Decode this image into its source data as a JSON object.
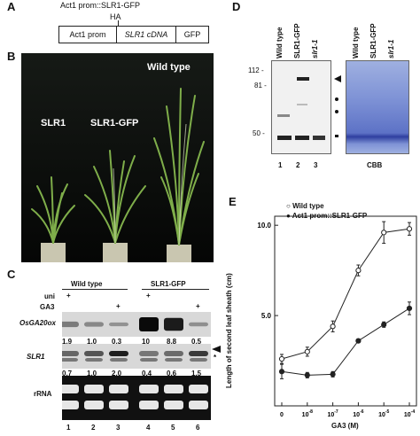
{
  "panel_a": {
    "label": "A",
    "construct_title": "Act1 prom::SLR1-GFP",
    "tag": "HA",
    "segments": [
      "Act1 prom",
      "SLR1 cDNA",
      "GFP"
    ]
  },
  "panel_b": {
    "label": "B",
    "plants": [
      "SLR1",
      "SLR1-GFP",
      "Wild type"
    ]
  },
  "panel_c": {
    "label": "C",
    "group_headers": [
      "Wild type",
      "SLR1-GFP"
    ],
    "row_labels": [
      "uni",
      "GA3"
    ],
    "uni_marks": [
      "+",
      "",
      "",
      "+",
      "",
      ""
    ],
    "ga_marks": [
      "",
      "",
      "+",
      "",
      "",
      "+"
    ],
    "gene1": "OsGA20ox",
    "gene1_values": [
      "1.9",
      "1.0",
      "0.3",
      "10",
      "8.8",
      "0.5"
    ],
    "gene2": "SLR1",
    "gene2_values": [
      "0.7",
      "1.0",
      "2.0",
      "0.4",
      "0.6",
      "1.5"
    ],
    "star": "*",
    "rrna": "rRNA",
    "lanes": [
      "1",
      "2",
      "3",
      "4",
      "5",
      "6"
    ]
  },
  "panel_d": {
    "label": "D",
    "lanes": [
      "Wild type",
      "SLR1-GFP",
      "slr1-1"
    ],
    "markers": [
      "112 -",
      "81 -",
      "50 -"
    ],
    "lane_numbers": [
      "1",
      "2",
      "3"
    ],
    "cbb": "CBB"
  },
  "panel_e": {
    "label": "E",
    "legend": [
      "Wild type",
      "Act1 prom::SLR1-GFP"
    ]
  },
  "chart_data": {
    "type": "line",
    "title": "",
    "xlabel": "GA3 (M)",
    "ylabel": "Length of second leaf sheath (cm)",
    "categories": [
      "0",
      "10-8",
      "10-7",
      "10-6",
      "10-5",
      "10-4"
    ],
    "ylim": [
      0,
      10.5
    ],
    "yticks": [
      "5.0",
      "10.0"
    ],
    "series": [
      {
        "name": "Wild type",
        "marker": "open-circle",
        "values": [
          2.6,
          3.0,
          4.4,
          7.5,
          9.6,
          9.8
        ],
        "errors": [
          0.25,
          0.25,
          0.3,
          0.3,
          0.6,
          0.35
        ]
      },
      {
        "name": "Act1 prom::SLR1-GFP",
        "marker": "filled-circle",
        "values": [
          1.9,
          1.7,
          1.75,
          3.6,
          4.5,
          5.4
        ],
        "errors": [
          0.4,
          0.15,
          0.15,
          0.1,
          0.15,
          0.35
        ]
      }
    ]
  }
}
